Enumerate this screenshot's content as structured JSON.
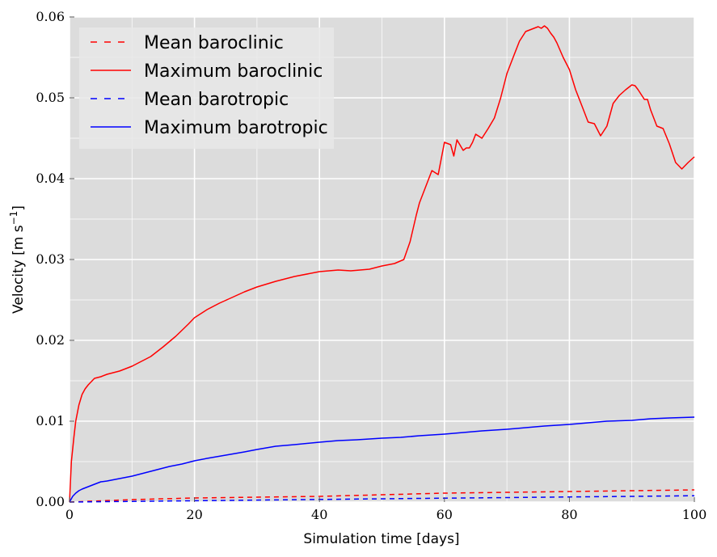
{
  "chart_data": {
    "type": "line",
    "title": "",
    "xlabel": "Simulation time [days]",
    "ylabel_base": "Velocity [m s",
    "ylabel_exp": "−1",
    "ylabel_close": "]",
    "xlim": [
      0,
      100
    ],
    "ylim": [
      0,
      0.06
    ],
    "xticks": [
      0,
      20,
      40,
      60,
      80,
      100
    ],
    "xtick_labels": [
      "0",
      "20",
      "40",
      "60",
      "80",
      "100"
    ],
    "yticks": [
      0,
      0.01,
      0.02,
      0.03,
      0.04,
      0.05,
      0.06
    ],
    "ytick_labels": [
      "0.00",
      "0.01",
      "0.02",
      "0.03",
      "0.04",
      "0.05",
      "0.06"
    ],
    "grid": true,
    "background": "#dcdcdc",
    "legend_position": "top-left",
    "series": [
      {
        "name": "Mean baroclinic",
        "color": "#ff0000",
        "style": "dashed",
        "x": [
          0,
          10,
          20,
          30,
          40,
          50,
          60,
          70,
          80,
          90,
          100
        ],
        "y": [
          0.0,
          0.0003,
          0.0005,
          0.0006,
          0.0007,
          0.0009,
          0.0011,
          0.0012,
          0.0013,
          0.0014,
          0.0015
        ]
      },
      {
        "name": "Maximum baroclinic",
        "color": "#ff0000",
        "style": "solid",
        "x": [
          0,
          0.3,
          0.7,
          1,
          1.5,
          2,
          2.5,
          3,
          4,
          5,
          6,
          7,
          8,
          9,
          10,
          11,
          12,
          13,
          15,
          17,
          19,
          20,
          22,
          24,
          26,
          28,
          30,
          33,
          36,
          40,
          43,
          45,
          48,
          50,
          52,
          53.5,
          54.5,
          55.5,
          56,
          57,
          58,
          59,
          60,
          61,
          61.5,
          62,
          63,
          63.5,
          64,
          64.5,
          65,
          66,
          67,
          68,
          69,
          70,
          71,
          72,
          73,
          74,
          75,
          75.5,
          76,
          76.5,
          77,
          77.5,
          78,
          79,
          80,
          81,
          82,
          83,
          84,
          85,
          86,
          87,
          88,
          89,
          90,
          90.5,
          91,
          92,
          92.5,
          93,
          94,
          95,
          96,
          97,
          98,
          99,
          100
        ],
        "y": [
          0.0,
          0.005,
          0.008,
          0.01,
          0.012,
          0.0133,
          0.014,
          0.0145,
          0.0153,
          0.0155,
          0.0158,
          0.016,
          0.0162,
          0.0165,
          0.0168,
          0.0172,
          0.0176,
          0.018,
          0.0192,
          0.0205,
          0.022,
          0.0228,
          0.0238,
          0.0246,
          0.0253,
          0.026,
          0.0266,
          0.0273,
          0.0279,
          0.0285,
          0.0287,
          0.0286,
          0.0288,
          0.0292,
          0.0295,
          0.03,
          0.0322,
          0.0355,
          0.037,
          0.039,
          0.041,
          0.0405,
          0.0445,
          0.0442,
          0.0428,
          0.0448,
          0.0435,
          0.0438,
          0.0438,
          0.0445,
          0.0455,
          0.045,
          0.0462,
          0.0475,
          0.05,
          0.053,
          0.055,
          0.057,
          0.0582,
          0.0585,
          0.0588,
          0.0586,
          0.0589,
          0.0586,
          0.058,
          0.0575,
          0.0568,
          0.055,
          0.0535,
          0.051,
          0.049,
          0.047,
          0.0468,
          0.0453,
          0.0465,
          0.0493,
          0.0503,
          0.051,
          0.0516,
          0.0515,
          0.051,
          0.0498,
          0.0498,
          0.0485,
          0.0465,
          0.0462,
          0.0443,
          0.042,
          0.0412,
          0.042,
          0.0427
        ]
      },
      {
        "name": "Mean barotropic",
        "color": "#0000ff",
        "style": "dashed",
        "x": [
          0,
          10,
          20,
          30,
          40,
          50,
          60,
          70,
          80,
          90,
          100
        ],
        "y": [
          0.0,
          8e-05,
          0.00016,
          0.00024,
          0.00032,
          0.0004,
          0.00048,
          0.00055,
          0.00063,
          0.0007,
          0.00078
        ]
      },
      {
        "name": "Maximum barotropic",
        "color": "#0000ff",
        "style": "solid",
        "x": [
          0,
          0.5,
          1,
          1.5,
          2,
          3,
          4,
          5,
          6,
          8,
          10,
          12,
          14,
          16,
          18,
          20,
          22,
          25,
          28,
          30,
          33,
          36,
          40,
          43,
          46,
          50,
          53,
          56,
          60,
          63,
          66,
          70,
          73,
          76,
          80,
          83,
          86,
          90,
          93,
          96,
          100
        ],
        "y": [
          0.0,
          0.0007,
          0.0011,
          0.0014,
          0.0016,
          0.0019,
          0.0022,
          0.0025,
          0.0026,
          0.0029,
          0.0032,
          0.0036,
          0.004,
          0.0044,
          0.0047,
          0.0051,
          0.0054,
          0.0058,
          0.0062,
          0.0065,
          0.0069,
          0.0071,
          0.0074,
          0.0076,
          0.0077,
          0.0079,
          0.008,
          0.0082,
          0.0084,
          0.0086,
          0.0088,
          0.009,
          0.0092,
          0.0094,
          0.0096,
          0.0098,
          0.01,
          0.0101,
          0.0103,
          0.0104,
          0.0105
        ]
      }
    ]
  }
}
